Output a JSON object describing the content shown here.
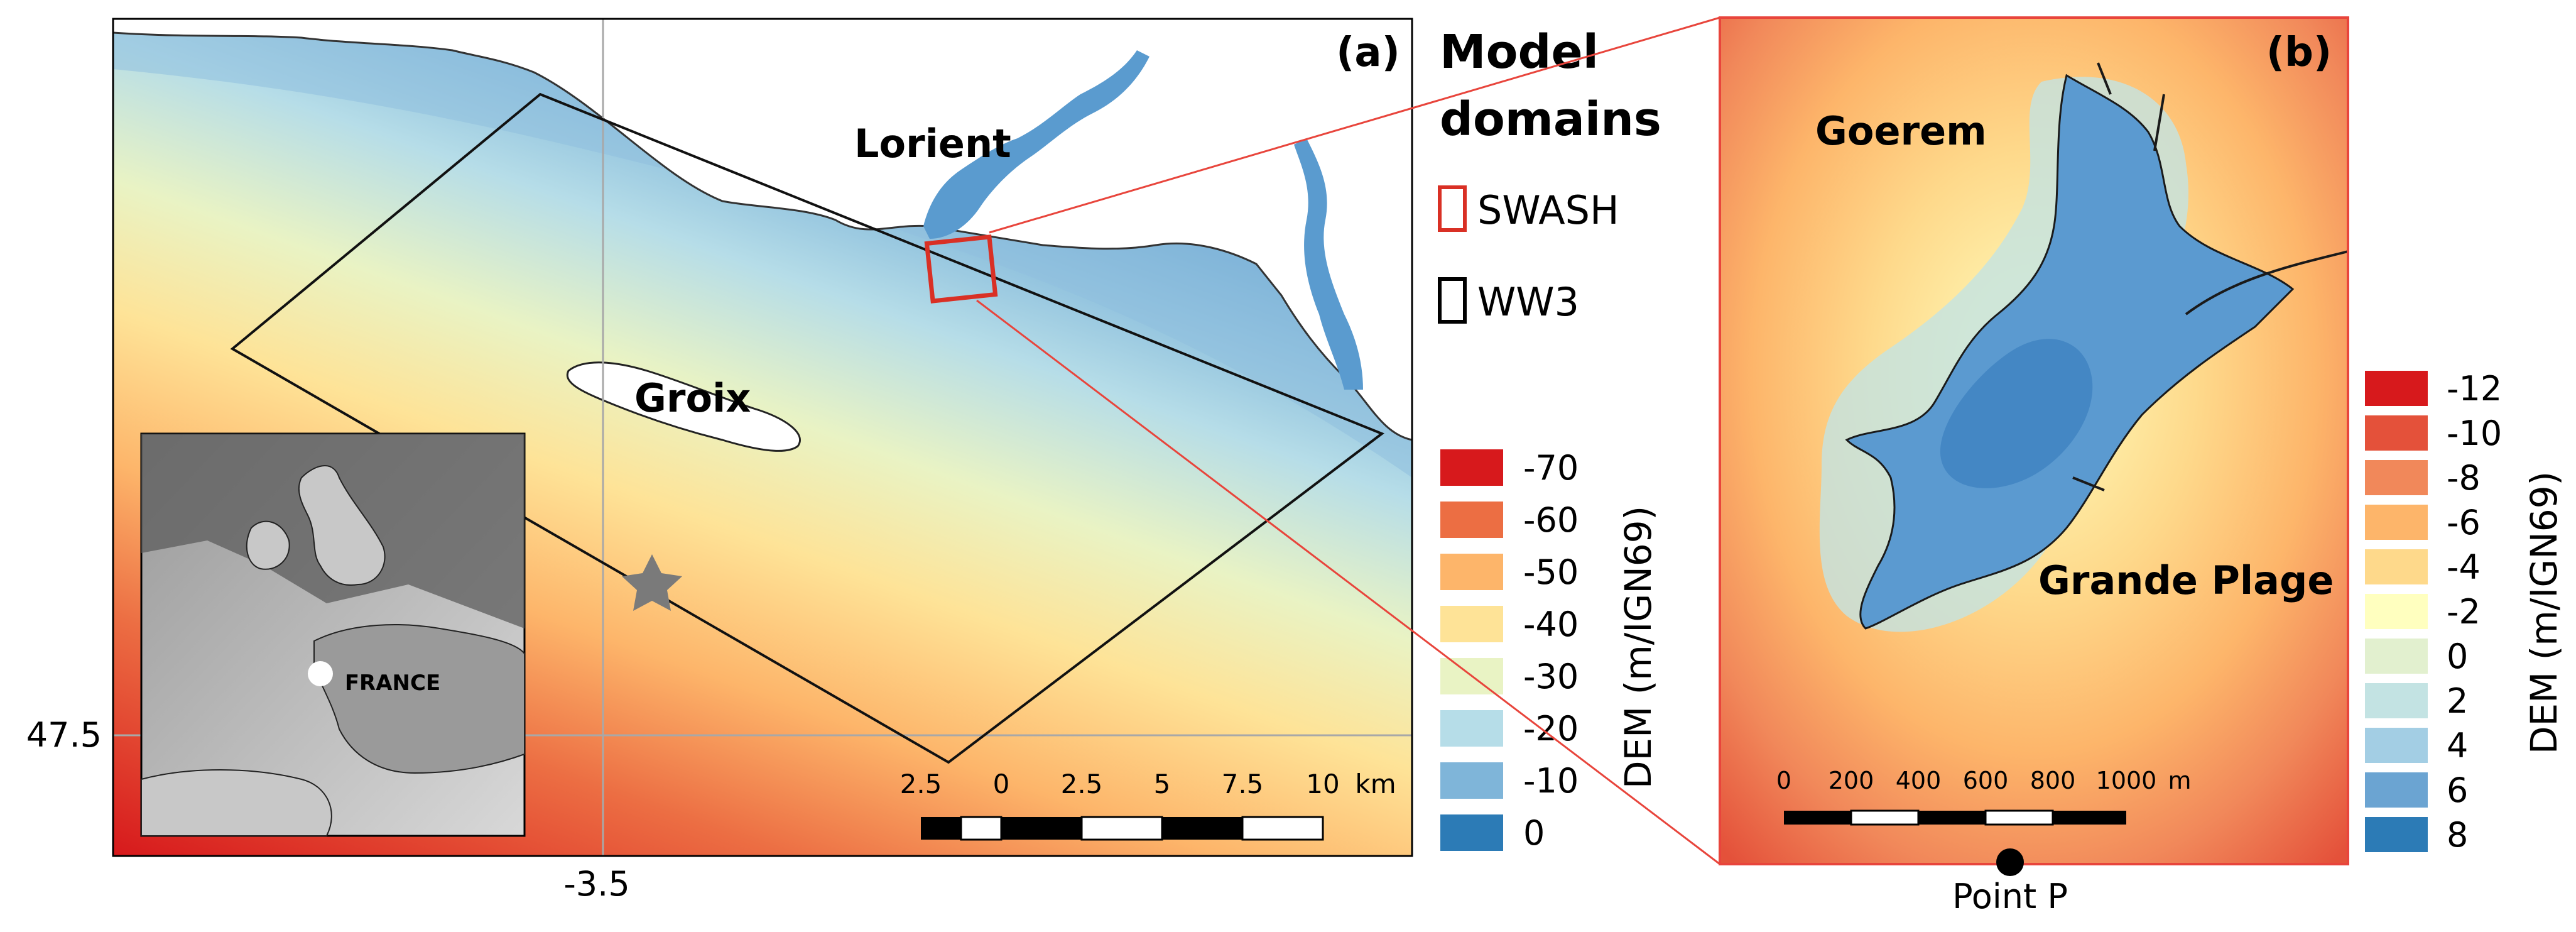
{
  "panel_a": {
    "label": "(a)",
    "places": {
      "lorient": "Lorient",
      "groix": "Groix"
    },
    "axis": {
      "lat": "47.5",
      "lon": "-3.5"
    },
    "inset": {
      "country": "FRANCE"
    },
    "scale": {
      "ticks": [
        "2.5",
        "0",
        "2.5",
        "5",
        "7.5",
        "10"
      ],
      "unit": "km"
    }
  },
  "legend_domains": {
    "title_line1": "Model",
    "title_line2": "domains",
    "items": [
      {
        "label": "SWASH",
        "color": "#d93025"
      },
      {
        "label": "WW3",
        "color": "#000000"
      }
    ]
  },
  "legend_a": {
    "title": "DEM (m/IGN69)",
    "items": [
      {
        "label": "-70",
        "color": "#d7191c"
      },
      {
        "label": "-60",
        "color": "#ec6e43"
      },
      {
        "label": "-50",
        "color": "#fdb56a"
      },
      {
        "label": "-40",
        "color": "#fee397"
      },
      {
        "label": "-30",
        "color": "#e9f3c4"
      },
      {
        "label": "-20",
        "color": "#b6dde8"
      },
      {
        "label": "-10",
        "color": "#7fb5d9"
      },
      {
        "label": "0",
        "color": "#2c7bb6"
      }
    ]
  },
  "panel_b": {
    "label": "(b)",
    "places": {
      "goerem": "Goerem",
      "grande_plage": "Grande Plage"
    },
    "scale": {
      "ticks": [
        "0",
        "200",
        "400",
        "600",
        "800",
        "1000"
      ],
      "unit": "m"
    },
    "point": "Point P"
  },
  "legend_b": {
    "title": "DEM (m/IGN69)",
    "items": [
      {
        "label": "-12",
        "color": "#d7191c"
      },
      {
        "label": "-10",
        "color": "#e4513a"
      },
      {
        "label": "-8",
        "color": "#f1885a"
      },
      {
        "label": "-6",
        "color": "#fdb56a"
      },
      {
        "label": "-4",
        "color": "#fed98b"
      },
      {
        "label": "-2",
        "color": "#ffffbf"
      },
      {
        "label": "0",
        "color": "#e2f0cf"
      },
      {
        "label": "2",
        "color": "#c3e3e3"
      },
      {
        "label": "4",
        "color": "#a3cee4"
      },
      {
        "label": "6",
        "color": "#6ba4d2"
      },
      {
        "label": "8",
        "color": "#2c7bb6"
      }
    ]
  }
}
